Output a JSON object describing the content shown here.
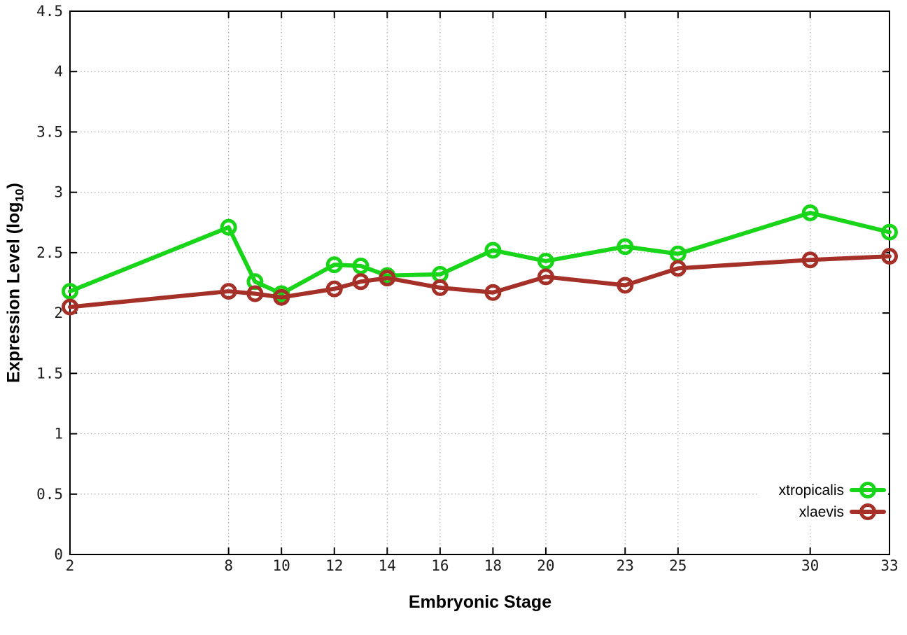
{
  "chart_data": {
    "type": "line",
    "xlabel": "Embryonic Stage",
    "ylabel_prefix": "Expression Level (log",
    "ylabel_sub": "10",
    "ylabel_suffix": ")",
    "xlim": [
      2,
      33
    ],
    "ylim": [
      0,
      4.5
    ],
    "xticks": [
      2,
      8,
      10,
      12,
      14,
      16,
      18,
      20,
      23,
      25,
      30,
      33
    ],
    "xtick_labels": [
      "2",
      "8",
      "10",
      "12",
      "14",
      "16",
      "18",
      "20",
      "23",
      "25",
      "30",
      "33"
    ],
    "yticks": [
      0,
      0.5,
      1,
      1.5,
      2,
      2.5,
      3,
      3.5,
      4,
      4.5
    ],
    "ytick_labels": [
      "0",
      "0.5",
      "1",
      "1.5",
      "2",
      "2.5",
      "3",
      "3.5",
      "4",
      "4.5"
    ],
    "grid": true,
    "legend_position": "bottom-right",
    "x": [
      2,
      8,
      9,
      10,
      12,
      13,
      14,
      16,
      18,
      20,
      23,
      25,
      30,
      33
    ],
    "series": [
      {
        "name": "xtropicalis",
        "color": "#19d519",
        "values": [
          2.18,
          2.71,
          2.26,
          2.16,
          2.4,
          2.39,
          2.31,
          2.32,
          2.52,
          2.43,
          2.55,
          2.49,
          2.83,
          2.67
        ]
      },
      {
        "name": "xlaevis",
        "color": "#a43028",
        "values": [
          2.05,
          2.18,
          2.16,
          2.13,
          2.2,
          2.26,
          2.29,
          2.21,
          2.17,
          2.3,
          2.23,
          2.37,
          2.44,
          2.47
        ]
      }
    ]
  },
  "colors": {
    "background": "#ffffff",
    "axis": "#000000",
    "grid": "#ababab",
    "tick_text": "#1c1c1c"
  }
}
